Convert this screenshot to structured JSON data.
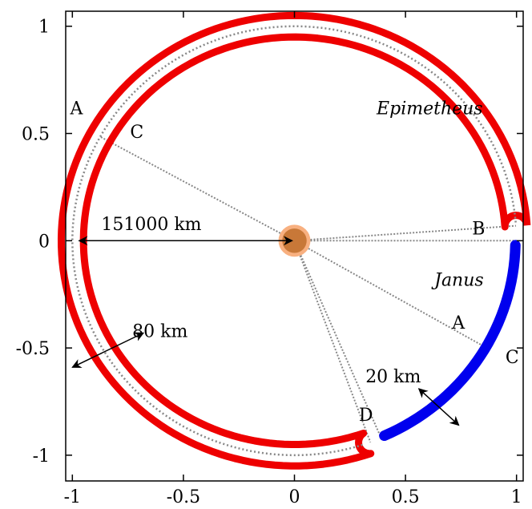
{
  "chart_data": {
    "type": "line",
    "title": "",
    "xlabel": "",
    "ylabel": "",
    "xlim": [
      -1.03,
      1.03
    ],
    "ylim": [
      -1.12,
      1.07
    ],
    "grid": false,
    "legend": "none",
    "xticks": [
      {
        "value": -1,
        "label": "-1"
      },
      {
        "value": -0.5,
        "label": "-0.5"
      },
      {
        "value": 0,
        "label": "0"
      },
      {
        "value": 0.5,
        "label": "0.5"
      },
      {
        "value": 1,
        "label": "1"
      }
    ],
    "yticks": [
      {
        "value": 1,
        "label": "1"
      },
      {
        "value": 0.5,
        "label": "0.5"
      },
      {
        "value": 0,
        "label": "0"
      },
      {
        "value": -0.5,
        "label": "-0.5"
      },
      {
        "value": -1,
        "label": "-1"
      }
    ],
    "series": [
      {
        "name": "Epimetheus",
        "color": "#ee0000",
        "guide_radius": 1.0,
        "outer_radius": 1.05,
        "inner_radius": 0.95,
        "start_angle_deg": 3.9,
        "end_angle_deg": -70.9,
        "sweep": "counterclockwise"
      },
      {
        "name": "Janus",
        "color": "#0000ee",
        "radius": 0.995,
        "start_angle_deg": -1.2,
        "end_angle_deg": -66.0
      }
    ],
    "planet": {
      "x": 0,
      "y": 0,
      "radius": 0.072,
      "core_radius": 0.055,
      "halo_color": "#f8b080",
      "core_color": "#c87838"
    },
    "rays": [
      {
        "angle_deg": 151
      },
      {
        "angle_deg": 4
      },
      {
        "angle_deg": 0
      },
      {
        "angle_deg": -30
      },
      {
        "angle_deg": -67
      },
      {
        "angle_deg": -70
      }
    ],
    "dimensions": [
      {
        "label": "151000 km",
        "from": [
          -0.97,
          0
        ],
        "to": [
          -0.01,
          0
        ]
      },
      {
        "label": "80 km",
        "from": [
          -1.0,
          -0.59
        ],
        "to": [
          -0.68,
          -0.43
        ]
      },
      {
        "label": "20 km",
        "from": [
          0.56,
          -0.69
        ],
        "to": [
          0.74,
          -0.86
        ]
      }
    ],
    "annotations": [
      {
        "text": "A",
        "x": -1.01,
        "y": 0.59,
        "style": "plain"
      },
      {
        "text": "C",
        "x": -0.74,
        "y": 0.48,
        "style": "plain"
      },
      {
        "text": "Epimetheus",
        "x": 0.37,
        "y": 0.59,
        "style": "italic"
      },
      {
        "text": "B",
        "x": 0.8,
        "y": 0.03,
        "style": "plain"
      },
      {
        "text": "Janus",
        "x": 0.63,
        "y": -0.21,
        "style": "italic"
      },
      {
        "text": "A",
        "x": 0.71,
        "y": -0.41,
        "style": "plain"
      },
      {
        "text": "C",
        "x": 0.95,
        "y": -0.57,
        "style": "plain"
      },
      {
        "text": "80 km",
        "x": -0.73,
        "y": -0.45,
        "style": "plain"
      },
      {
        "text": "20 km",
        "x": 0.32,
        "y": -0.66,
        "style": "plain"
      },
      {
        "text": "D",
        "x": 0.29,
        "y": -0.84,
        "style": "plain"
      },
      {
        "text": "151000 km",
        "x": -0.87,
        "y": 0.05,
        "style": "plain"
      }
    ]
  }
}
